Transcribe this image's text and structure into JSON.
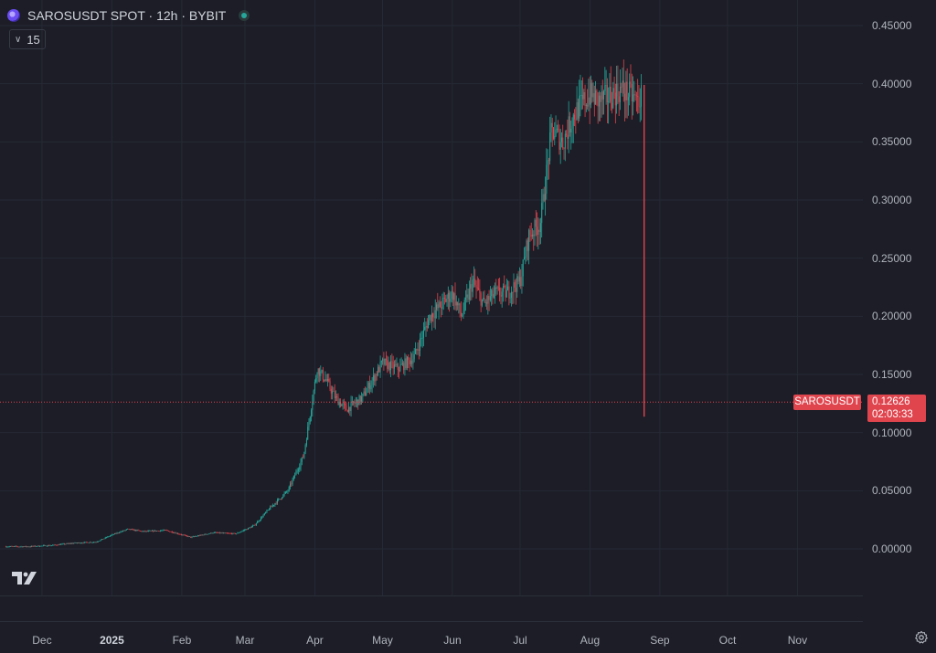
{
  "header": {
    "title": "SAROSUSDT SPOT · 12h · BYBIT",
    "indicator_value": "15"
  },
  "price_tag": {
    "symbol": "SAROSUSDT",
    "price": "0.12626",
    "countdown": "02:03:33",
    "color": "#e0454e"
  },
  "price_axis": {
    "labels": [
      "0.45000",
      "0.40000",
      "0.35000",
      "0.30000",
      "0.25000",
      "0.20000",
      "0.15000",
      "0.10000",
      "0.05000",
      "0.00000"
    ]
  },
  "time_axis": {
    "labels": [
      "Dec",
      "2025",
      "Feb",
      "Mar",
      "Apr",
      "May",
      "Jun",
      "Jul",
      "Aug",
      "Sep",
      "Oct",
      "Nov"
    ]
  },
  "icons": {
    "symbol": "saros-logo-icon",
    "live": "market-open-dot-icon",
    "toggle": "chevron-down-icon",
    "brand": "tradingview-logo-icon",
    "settings": "gear-icon"
  },
  "colors": {
    "background": "#1c1d26",
    "up": "#26a69a",
    "down": "#e0454e",
    "grid": "#262a35"
  },
  "chart_data": {
    "type": "candlestick",
    "title": "SAROSUSDT SPOT · 12h · BYBIT",
    "interval": "12h",
    "xlabel": "",
    "ylabel": "",
    "ylim": [
      0,
      0.45
    ],
    "x_range": [
      "2024-11-14",
      "2025-11-30"
    ],
    "grid": true,
    "last_price": 0.12626,
    "series": [
      {
        "name": "SAROSUSDT",
        "x": [
          "2024-11-15",
          "2024-11-25",
          "2024-12-05",
          "2024-12-15",
          "2024-12-25",
          "2025-01-01",
          "2025-01-08",
          "2025-01-15",
          "2025-01-25",
          "2025-02-05",
          "2025-02-15",
          "2025-02-25",
          "2025-03-05",
          "2025-03-12",
          "2025-03-20",
          "2025-03-27",
          "2025-04-02",
          "2025-04-06",
          "2025-04-10",
          "2025-04-15",
          "2025-04-22",
          "2025-05-01",
          "2025-05-08",
          "2025-05-15",
          "2025-05-22",
          "2025-05-27",
          "2025-06-01",
          "2025-06-05",
          "2025-06-10",
          "2025-06-15",
          "2025-06-20",
          "2025-06-25",
          "2025-07-01",
          "2025-07-05",
          "2025-07-10",
          "2025-07-15",
          "2025-07-20",
          "2025-07-24",
          "2025-07-27",
          "2025-08-01",
          "2025-08-05",
          "2025-08-10",
          "2025-08-15",
          "2025-08-19",
          "2025-08-22",
          "2025-08-24",
          "2025-08-25"
        ],
        "close": [
          0.002,
          0.002,
          0.003,
          0.005,
          0.006,
          0.012,
          0.017,
          0.015,
          0.016,
          0.01,
          0.014,
          0.013,
          0.02,
          0.035,
          0.05,
          0.08,
          0.155,
          0.145,
          0.13,
          0.12,
          0.13,
          0.16,
          0.155,
          0.165,
          0.2,
          0.21,
          0.22,
          0.2,
          0.23,
          0.21,
          0.22,
          0.22,
          0.23,
          0.27,
          0.28,
          0.36,
          0.35,
          0.37,
          0.38,
          0.39,
          0.385,
          0.39,
          0.395,
          0.39,
          0.385,
          0.39,
          0.12626
        ]
      }
    ]
  }
}
